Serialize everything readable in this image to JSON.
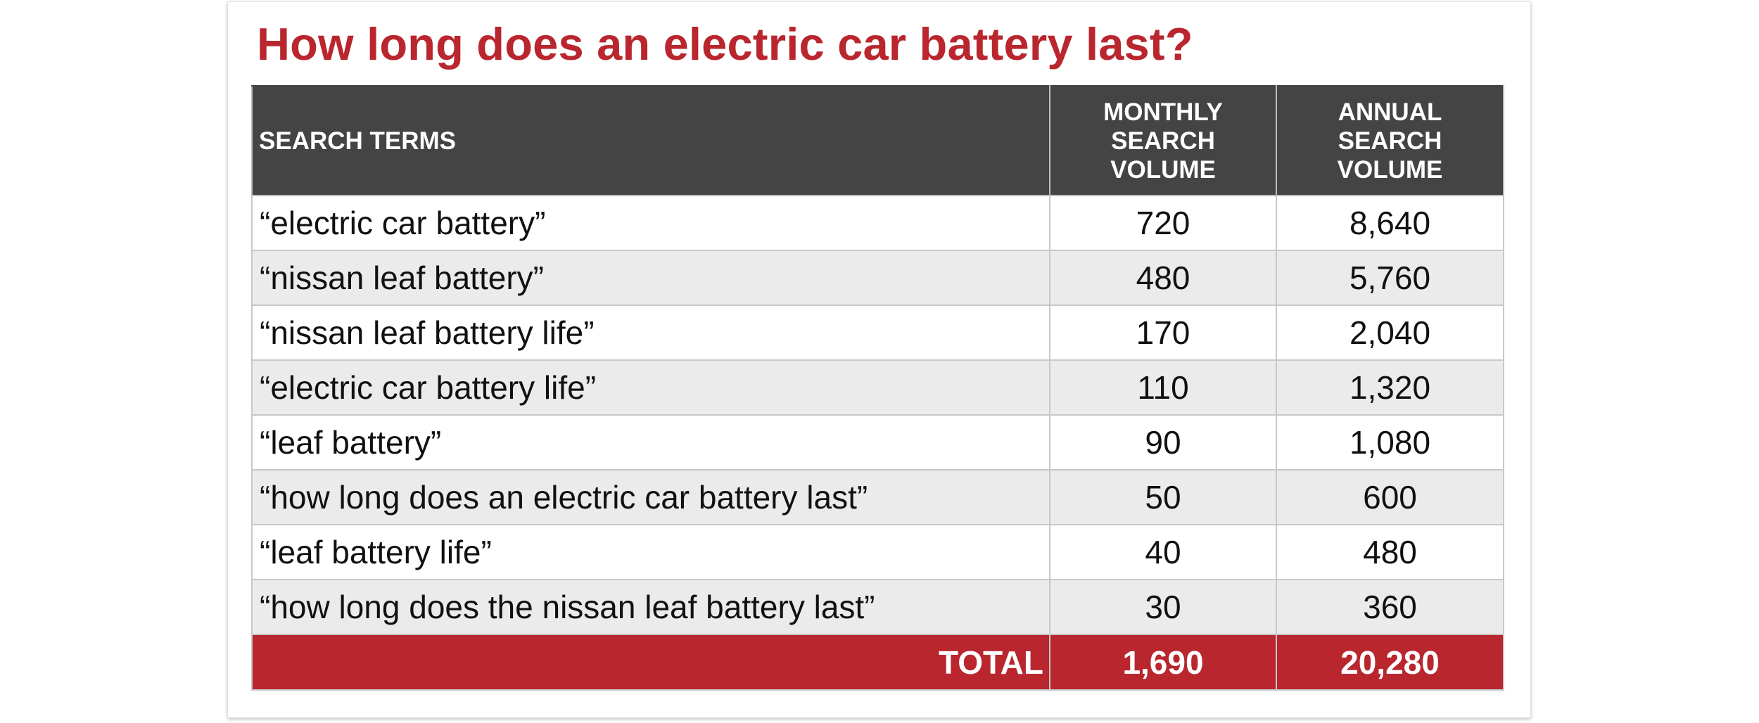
{
  "chart_data": {
    "type": "table",
    "title": "How long does an electric car battery last?",
    "columns": [
      "SEARCH TERMS",
      "MONTHLY SEARCH VOLUME",
      "ANNUAL SEARCH VOLUME"
    ],
    "rows": [
      {
        "term": "“electric car battery”",
        "monthly": "720",
        "annual": "8,640"
      },
      {
        "term": "“nissan leaf battery”",
        "monthly": "480",
        "annual": "5,760"
      },
      {
        "term": "“nissan leaf battery life”",
        "monthly": "170",
        "annual": "2,040"
      },
      {
        "term": "“electric car battery life”",
        "monthly": "110",
        "annual": "1,320"
      },
      {
        "term": "“leaf battery”",
        "monthly": "90",
        "annual": "1,080"
      },
      {
        "term": "“how long does an electric car battery last”",
        "monthly": "50",
        "annual": "600"
      },
      {
        "term": "“leaf battery life”",
        "monthly": "40",
        "annual": "480"
      },
      {
        "term": "“how long does the nissan leaf battery last”",
        "monthly": "30",
        "annual": "360"
      }
    ],
    "total": {
      "label": "TOTAL",
      "monthly": "1,690",
      "annual": "20,280"
    },
    "colors": {
      "title": "#b9262e",
      "header_bg": "#444444",
      "total_bg": "#b9262e",
      "stripe": "#ebebeb"
    }
  }
}
